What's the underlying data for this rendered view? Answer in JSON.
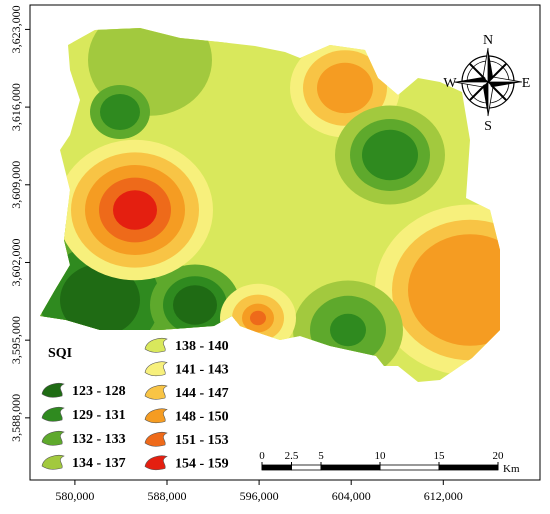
{
  "map": {
    "xaxis": {
      "lim": [
        576100,
        620400
      ],
      "ticks": [
        {
          "value": 580000,
          "label": "580,000"
        },
        {
          "value": 588000,
          "label": "588,000"
        },
        {
          "value": 596000,
          "label": "596,000"
        },
        {
          "value": 604000,
          "label": "604,000"
        },
        {
          "value": 612000,
          "label": "612,000"
        }
      ]
    },
    "yaxis": {
      "lim": [
        3582400,
        3625200
      ],
      "ticks": [
        {
          "value": 3623000,
          "label": "3,623,000"
        },
        {
          "value": 3616000,
          "label": "3,616,000"
        },
        {
          "value": 3609000,
          "label": "3,609,000"
        },
        {
          "value": 3602000,
          "label": "3,602,000"
        },
        {
          "value": 3595000,
          "label": "3,595,000"
        },
        {
          "value": 3588000,
          "label": "3,588,000"
        }
      ]
    },
    "legend": {
      "title": "SQI",
      "classes": [
        {
          "label": "123 - 128",
          "color": "#1f6b14"
        },
        {
          "label": "129 - 131",
          "color": "#2f8a1f"
        },
        {
          "label": "132 - 133",
          "color": "#5ea92c"
        },
        {
          "label": "134 - 137",
          "color": "#a2c93e"
        },
        {
          "label": "138 - 140",
          "color": "#d9e85c"
        },
        {
          "label": "141 - 143",
          "color": "#f7f07c"
        },
        {
          "label": "144 - 147",
          "color": "#f8c445"
        },
        {
          "label": "148 - 150",
          "color": "#f59c22"
        },
        {
          "label": "151 - 153",
          "color": "#ee6a1a"
        },
        {
          "label": "154 - 159",
          "color": "#e41f10"
        }
      ]
    },
    "compass": {
      "north": "N",
      "south": "S",
      "east": "E",
      "west": "W"
    },
    "scale_bar": {
      "ticks": [
        0,
        2.5,
        5,
        10,
        15,
        20
      ],
      "unit": "Km"
    }
  }
}
